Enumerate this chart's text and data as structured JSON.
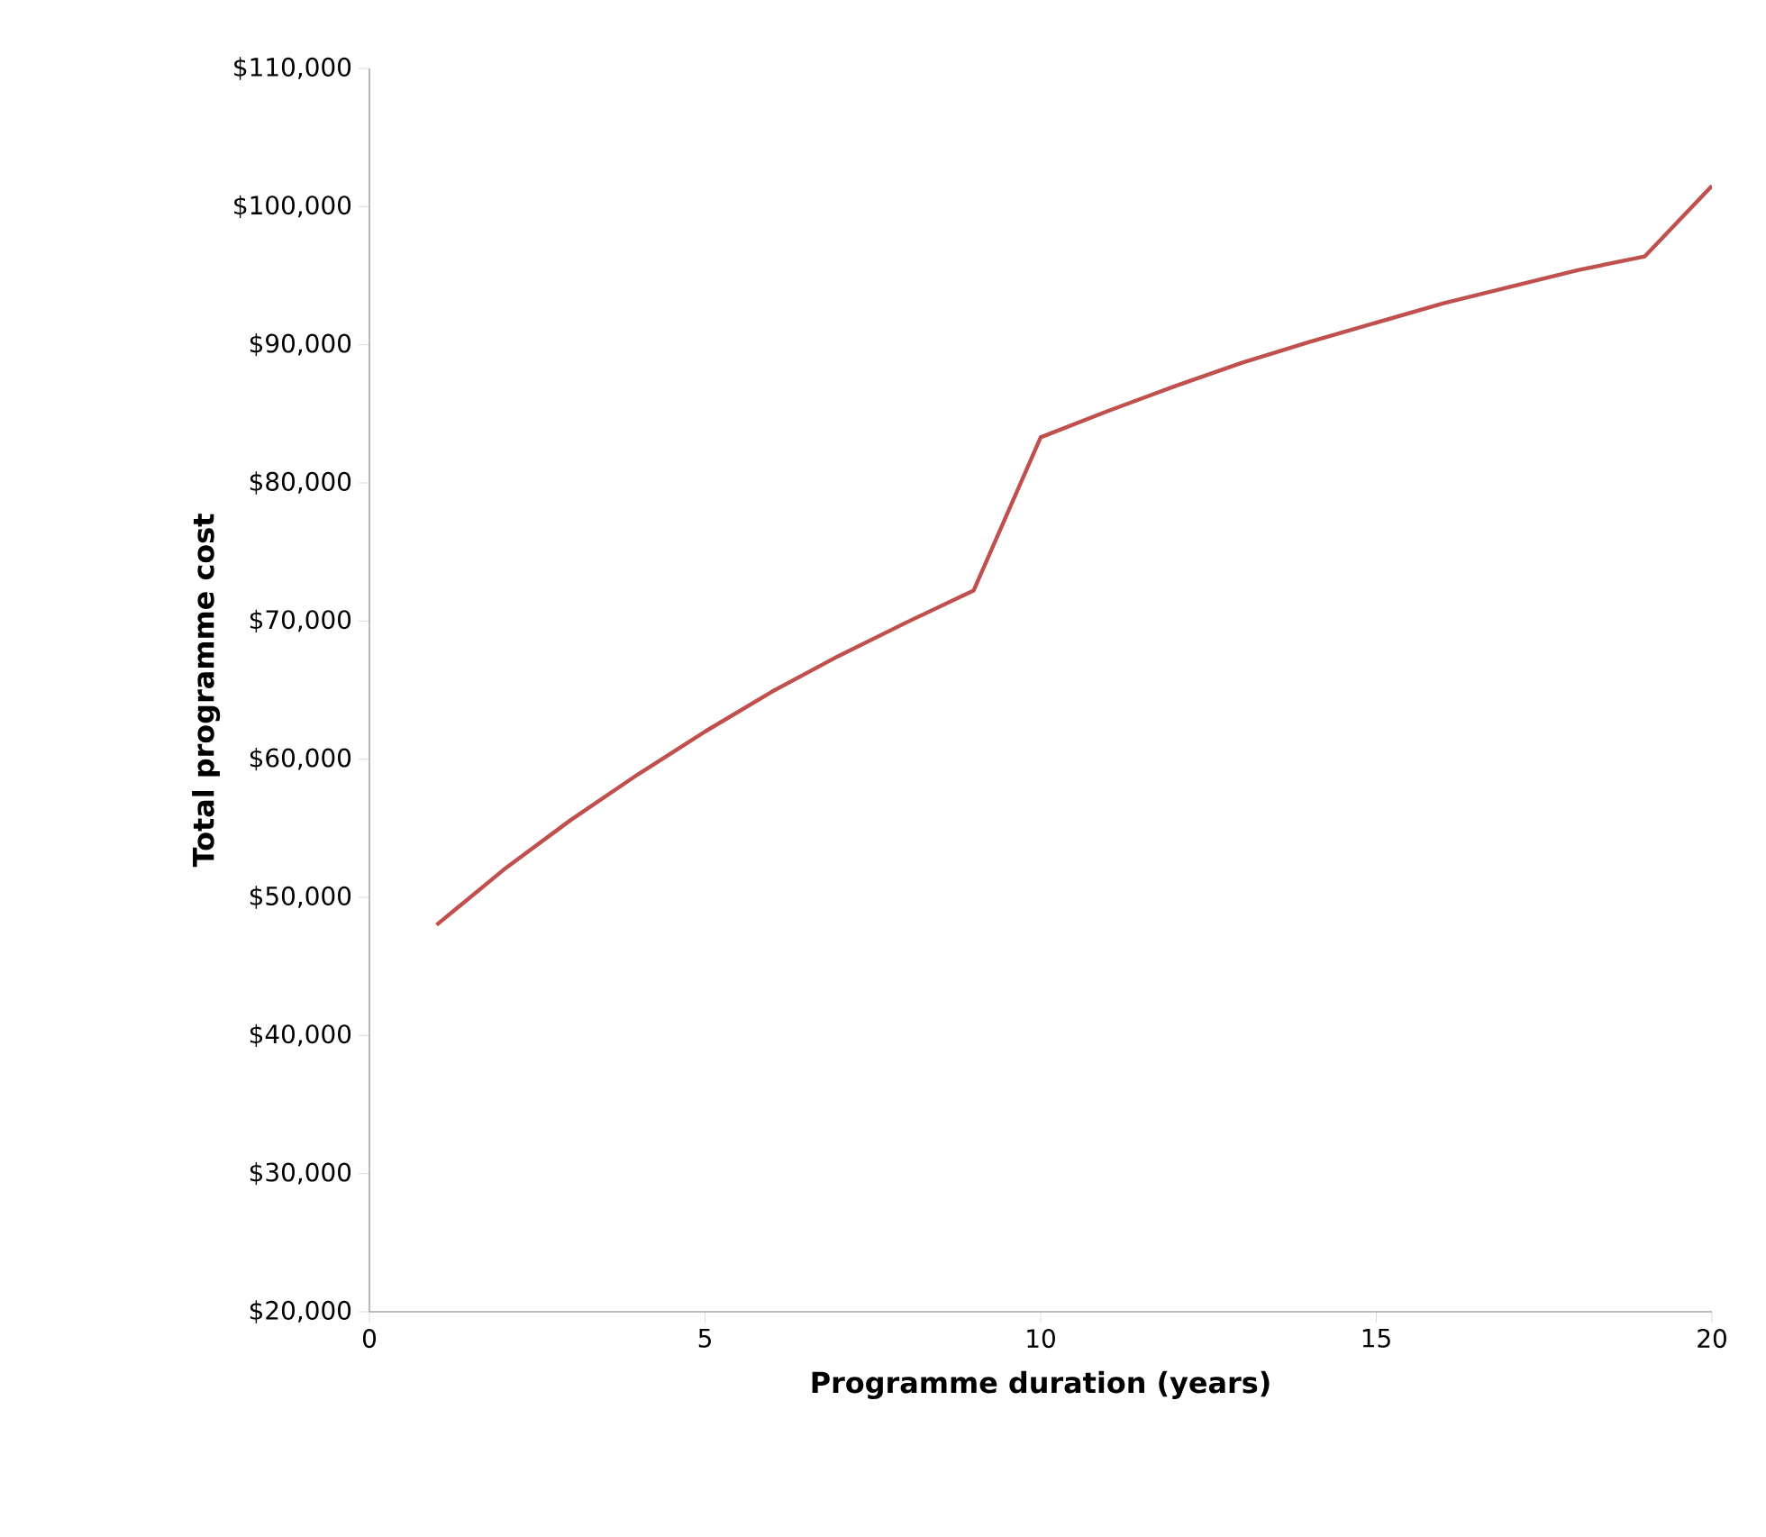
{
  "chart_data": {
    "type": "line",
    "xlabel": "Programme duration (years)",
    "ylabel": "Total programme cost",
    "x": [
      1,
      2,
      3,
      4,
      5,
      6,
      7,
      8,
      9,
      10,
      11,
      12,
      13,
      14,
      15,
      16,
      17,
      18,
      19,
      20
    ],
    "series": [
      {
        "color": "#c0504d",
        "values": [
          48000,
          52000,
          55600,
          58900,
          62000,
          64900,
          67500,
          69900,
          72200,
          83300,
          85200,
          87000,
          88700,
          90200,
          91600,
          93000,
          94200,
          95400,
          96400,
          101500
        ]
      }
    ],
    "xlim": [
      0,
      20
    ],
    "xticks": [
      0,
      5,
      10,
      15,
      20
    ],
    "ylim": [
      20000,
      110000
    ],
    "yticks": [
      {
        "value": 20000,
        "label": "$20,000"
      },
      {
        "value": 30000,
        "label": "$30,000"
      },
      {
        "value": 40000,
        "label": "$40,000"
      },
      {
        "value": 50000,
        "label": "$50,000"
      },
      {
        "value": 60000,
        "label": "$60,000"
      },
      {
        "value": 70000,
        "label": "$70,000"
      },
      {
        "value": 80000,
        "label": "$80,000"
      },
      {
        "value": 90000,
        "label": "$90,000"
      },
      {
        "value": 100000,
        "label": "$100,000"
      },
      {
        "value": 110000,
        "label": "$110,000"
      }
    ],
    "grid": false,
    "marker": "none",
    "line_style": "solid"
  }
}
